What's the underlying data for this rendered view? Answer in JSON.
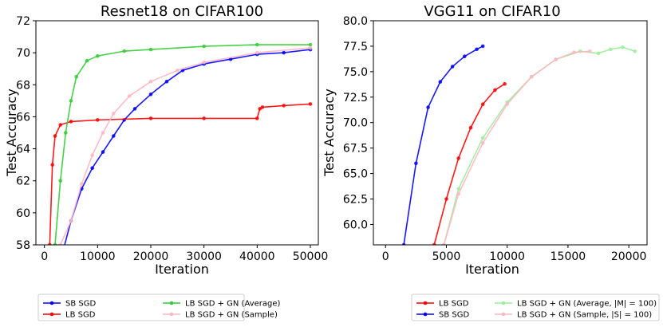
{
  "chart_data": [
    {
      "type": "line",
      "title": "Resnet18 on CIFAR100",
      "xlabel": "Iteration",
      "ylabel": "Test Accuracy",
      "xlim": [
        -1600,
        51500
      ],
      "ylim": [
        58,
        72
      ],
      "xticks": [
        0,
        10000,
        20000,
        30000,
        40000,
        50000
      ],
      "yticks": [
        58,
        60,
        62,
        64,
        66,
        68,
        70,
        72
      ],
      "grid": false,
      "legend_position": "below",
      "series": [
        {
          "name": "SB SGD",
          "color": "#0000ff",
          "x": [
            3000,
            5000,
            7000,
            9000,
            11000,
            13000,
            15000,
            17000,
            20000,
            23000,
            26000,
            30000,
            35000,
            40000,
            45000,
            50000
          ],
          "y": [
            57.0,
            59.5,
            61.5,
            62.8,
            63.8,
            64.8,
            65.8,
            66.5,
            67.4,
            68.2,
            68.9,
            69.3,
            69.6,
            69.9,
            70.0,
            70.2
          ]
        },
        {
          "name": "LB SGD",
          "color": "#ff0000",
          "x": [
            1000,
            1500,
            2000,
            3000,
            5000,
            10000,
            20000,
            30000,
            40000,
            40500,
            41000,
            45000,
            50000
          ],
          "y": [
            58.0,
            63.0,
            64.8,
            65.5,
            65.7,
            65.8,
            65.9,
            65.9,
            65.9,
            66.5,
            66.6,
            66.7,
            66.8
          ]
        },
        {
          "name": "LB SGD + GN (Average)",
          "color": "#33cc33",
          "x": [
            2000,
            3000,
            4000,
            5000,
            6000,
            8000,
            10000,
            15000,
            20000,
            30000,
            40000,
            50000
          ],
          "y": [
            58.0,
            62.0,
            65.0,
            67.0,
            68.5,
            69.5,
            69.8,
            70.1,
            70.2,
            70.4,
            70.5,
            70.5
          ]
        },
        {
          "name": "LB SGD + GN (Sample)",
          "color": "#ffb6c1",
          "x": [
            3000,
            5000,
            7000,
            9000,
            11000,
            13000,
            16000,
            20000,
            25000,
            30000,
            40000,
            50000
          ],
          "y": [
            58.0,
            59.5,
            61.8,
            63.6,
            65.0,
            66.2,
            67.3,
            68.2,
            68.9,
            69.4,
            70.0,
            70.3
          ]
        }
      ]
    },
    {
      "type": "line",
      "title": "VGG11 on CIFAR10",
      "xlabel": "Iteration",
      "ylabel": "Test Accuracy",
      "xlim": [
        -1000,
        21500
      ],
      "ylim": [
        58,
        80
      ],
      "xticks": [
        0,
        5000,
        10000,
        15000,
        20000
      ],
      "yticks": [
        60.0,
        62.5,
        65.0,
        67.5,
        70.0,
        72.5,
        75.0,
        77.5,
        80.0
      ],
      "grid": false,
      "legend_position": "below",
      "series": [
        {
          "name": "LB SGD",
          "color": "#ff0000",
          "x": [
            4000,
            5000,
            6000,
            7000,
            8000,
            9000,
            9800
          ],
          "y": [
            58.0,
            62.5,
            66.5,
            69.5,
            71.8,
            73.2,
            73.8
          ]
        },
        {
          "name": "SB SGD",
          "color": "#0000ff",
          "x": [
            1500,
            2500,
            3500,
            4500,
            5500,
            6500,
            7500,
            8000
          ],
          "y": [
            58.0,
            66.0,
            71.5,
            74.0,
            75.5,
            76.5,
            77.2,
            77.5
          ]
        },
        {
          "name": "LB SGD + GN (Average, |M| = 100)",
          "color": "#99ee99",
          "x": [
            4800,
            6000,
            8000,
            10000,
            12000,
            14000,
            16000,
            17500,
            18500,
            19500,
            20500
          ],
          "y": [
            58.0,
            63.5,
            68.5,
            72.0,
            74.5,
            76.2,
            77.0,
            76.8,
            77.2,
            77.4,
            77.0
          ]
        },
        {
          "name": "LB SGD + GN (Sample, |S| = 100)",
          "color": "#ffb6c1",
          "x": [
            4800,
            6000,
            8000,
            10000,
            12000,
            14000,
            15500,
            16800
          ],
          "y": [
            58.0,
            63.0,
            68.0,
            71.8,
            74.5,
            76.2,
            76.9,
            77.0
          ]
        }
      ]
    }
  ]
}
